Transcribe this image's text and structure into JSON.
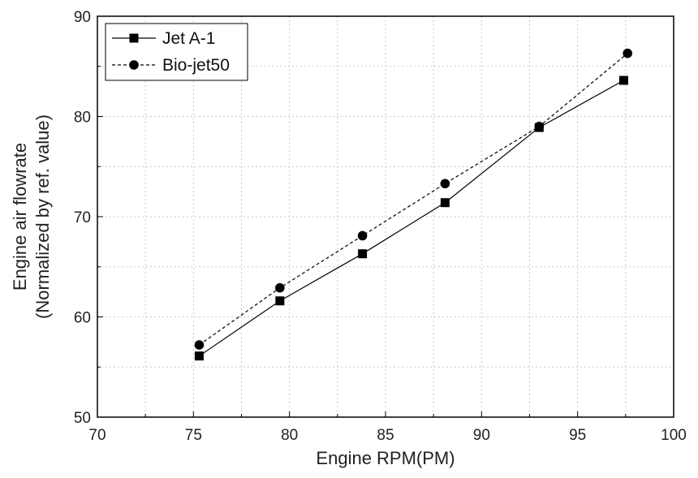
{
  "chart_data": {
    "type": "line",
    "xlabel": "Engine RPM(PM)",
    "ylabel_lines": [
      "Engine air flowrate",
      "(Normalized by ref. value)"
    ],
    "xlim": [
      70,
      100
    ],
    "ylim": [
      50,
      90
    ],
    "xticks": [
      70,
      75,
      80,
      85,
      90,
      95,
      100
    ],
    "yticks": [
      50,
      60,
      70,
      80,
      90
    ],
    "grid": true,
    "legend_position": "top-left",
    "series": [
      {
        "name": "Jet A-1",
        "marker": "square",
        "line_style": "solid",
        "color": "#000000",
        "x": [
          75.3,
          79.5,
          83.8,
          88.1,
          93.0,
          97.4
        ],
        "y": [
          56.1,
          61.6,
          66.3,
          71.4,
          78.9,
          83.6
        ]
      },
      {
        "name": "Bio-jet50",
        "marker": "circle",
        "line_style": "dashed",
        "color": "#000000",
        "x": [
          75.3,
          79.5,
          83.8,
          88.1,
          93.0,
          97.6
        ],
        "y": [
          57.2,
          62.9,
          68.1,
          73.3,
          79.0,
          86.3
        ]
      }
    ]
  }
}
